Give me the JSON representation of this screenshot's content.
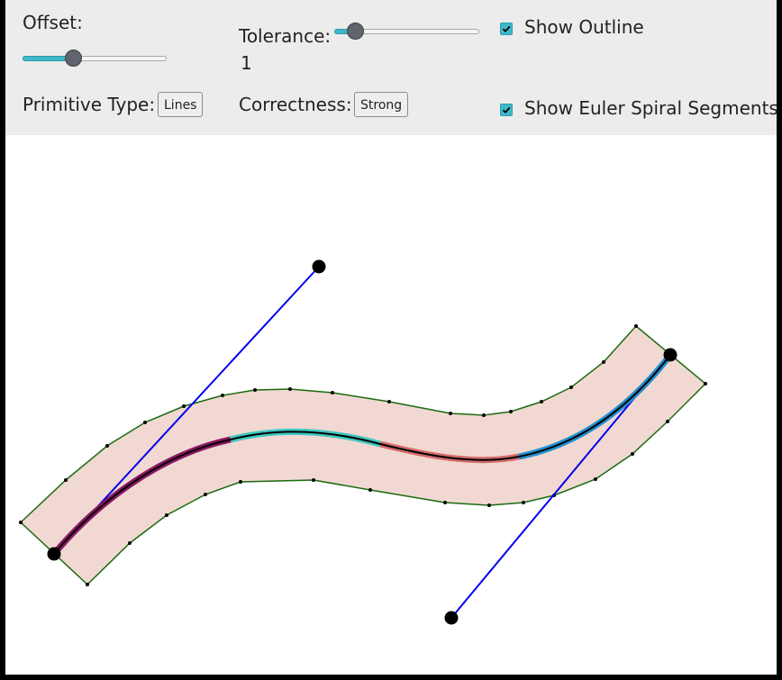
{
  "controls": {
    "offset_label": "Offset:",
    "tolerance_label": "Tolerance:",
    "tolerance_value": "1",
    "show_outline_label": "Show Outline",
    "show_outline_checked": true,
    "primitive_type_label": "Primitive Type:",
    "primitive_type_button": "Lines",
    "correctness_label": "Correctness:",
    "correctness_button": "Strong",
    "show_euler_label": "Show Euler Spiral Segments",
    "show_euler_checked": true,
    "offset_slider_fraction": 0.35,
    "tolerance_slider_fraction": 0.14
  },
  "colors": {
    "accent": "#3fb8c8",
    "band_fill": "#f1d8d2",
    "outline": "#1a6b10",
    "curve": "#000000",
    "handle_line": "#0000ee",
    "segment_1": "#8a1664",
    "segment_2": "#3cc8c0",
    "segment_3": "#d46a6a",
    "segment_4": "#1f8fcf"
  }
}
